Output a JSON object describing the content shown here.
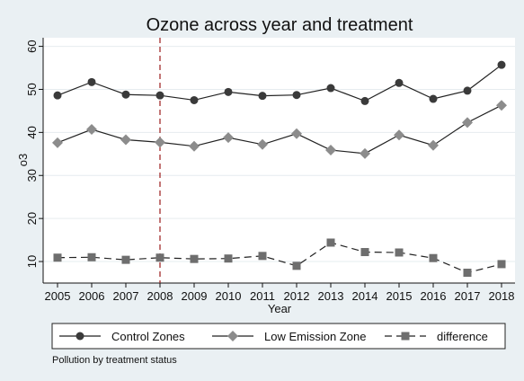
{
  "chart_data": {
    "type": "line",
    "title": "Ozone across year and treatment",
    "xlabel": "Year",
    "ylabel": "o3",
    "note": "Pollution by treatment status",
    "x": [
      2005,
      2006,
      2007,
      2008,
      2009,
      2010,
      2011,
      2012,
      2013,
      2014,
      2015,
      2016,
      2017,
      2018
    ],
    "xlim": [
      2005,
      2018
    ],
    "ylim": [
      5,
      62
    ],
    "yticks": [
      10,
      20,
      30,
      40,
      50,
      60
    ],
    "grid": "horizontal",
    "legend_position": "bottom",
    "reference_line": {
      "x": 2008,
      "color": "#9b1c1c",
      "style": "dashed"
    },
    "series": [
      {
        "name": "Control Zones",
        "marker": "circle",
        "line_style": "solid",
        "color": "#3a3a3a",
        "values": [
          48.6,
          51.7,
          48.8,
          48.6,
          47.5,
          49.4,
          48.5,
          48.7,
          50.3,
          47.3,
          51.5,
          47.8,
          49.7,
          55.7
        ]
      },
      {
        "name": "Low Emission Zone",
        "marker": "diamond",
        "line_style": "solid",
        "color": "#8c8c8c",
        "values": [
          37.6,
          40.7,
          38.3,
          37.7,
          36.8,
          38.8,
          37.2,
          39.7,
          35.9,
          35.1,
          39.4,
          37.0,
          42.3,
          46.3
        ]
      },
      {
        "name": "difference",
        "marker": "square",
        "line_style": "dashed",
        "color": "#6e6e6e",
        "values": [
          10.9,
          11.0,
          10.4,
          10.9,
          10.6,
          10.7,
          11.3,
          9.0,
          14.4,
          12.2,
          12.1,
          10.8,
          7.4,
          9.4
        ]
      }
    ]
  }
}
